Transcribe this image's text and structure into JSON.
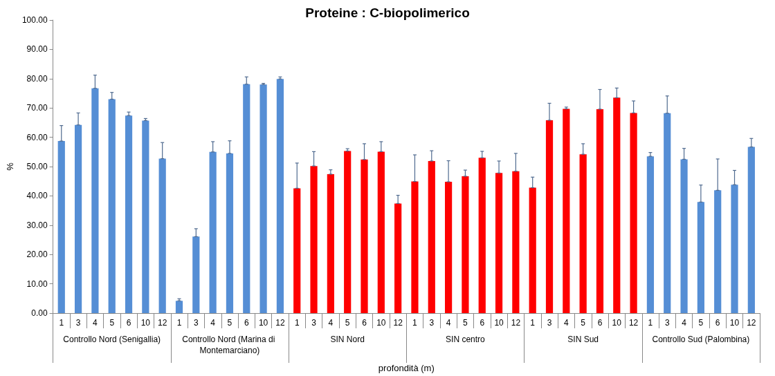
{
  "chart_data": {
    "type": "bar",
    "title": "Proteine : C-biopolimerico",
    "xlabel": "profondità (m)",
    "ylabel": "%",
    "categories": [
      "1",
      "3",
      "4",
      "5",
      "6",
      "10",
      "12",
      "1",
      "3",
      "4",
      "5",
      "6",
      "10",
      "12",
      "1",
      "3",
      "4",
      "5",
      "6",
      "10",
      "12",
      "1",
      "3",
      "4",
      "5",
      "6",
      "10",
      "12",
      "1",
      "3",
      "4",
      "5",
      "6",
      "10",
      "12",
      "1",
      "3",
      "4",
      "5",
      "6",
      "10",
      "12"
    ],
    "values": [
      58.7,
      64.2,
      76.7,
      73.0,
      67.4,
      65.7,
      52.7,
      4.2,
      26.1,
      55.0,
      54.5,
      78.1,
      78.0,
      79.9,
      42.6,
      50.2,
      47.4,
      55.3,
      52.4,
      55.1,
      37.4,
      44.9,
      51.9,
      44.8,
      46.7,
      53.0,
      47.8,
      48.4,
      42.8,
      65.8,
      69.7,
      54.2,
      69.6,
      73.5,
      68.3,
      53.5,
      68.2,
      52.5,
      37.9,
      41.9,
      43.8,
      56.7
    ],
    "errors": [
      [
        58.7,
        64.0
      ],
      [
        64.2,
        68.3
      ],
      [
        76.7,
        81.2
      ],
      [
        73.0,
        75.3
      ],
      [
        67.4,
        68.6
      ],
      [
        65.7,
        66.4
      ],
      [
        52.7,
        58.2
      ],
      [
        4.2,
        4.9
      ],
      [
        26.1,
        28.8
      ],
      [
        55.0,
        58.5
      ],
      [
        54.5,
        58.8
      ],
      [
        78.1,
        80.6
      ],
      [
        78.0,
        78.4
      ],
      [
        79.9,
        80.6
      ],
      [
        42.6,
        51.2
      ],
      [
        50.2,
        55.1
      ],
      [
        47.4,
        48.9
      ],
      [
        55.3,
        56.1
      ],
      [
        52.4,
        57.8
      ],
      [
        55.1,
        58.5
      ],
      [
        37.4,
        40.2
      ],
      [
        44.9,
        54.0
      ],
      [
        51.9,
        55.4
      ],
      [
        44.8,
        52.0
      ],
      [
        46.7,
        48.8
      ],
      [
        53.0,
        55.2
      ],
      [
        47.8,
        51.9
      ],
      [
        48.4,
        54.5
      ],
      [
        42.8,
        46.4
      ],
      [
        65.8,
        71.6
      ],
      [
        69.7,
        70.3
      ],
      [
        54.2,
        57.8
      ],
      [
        69.6,
        76.3
      ],
      [
        73.5,
        76.8
      ],
      [
        68.3,
        72.4
      ],
      [
        53.5,
        54.8
      ],
      [
        68.2,
        74.1
      ],
      [
        52.5,
        56.2
      ],
      [
        37.9,
        43.7
      ],
      [
        41.9,
        52.6
      ],
      [
        43.8,
        48.7
      ],
      [
        56.7,
        59.6
      ]
    ],
    "colors": [
      "#558ed5",
      "#558ed5",
      "#558ed5",
      "#558ed5",
      "#558ed5",
      "#558ed5",
      "#558ed5",
      "#558ed5",
      "#558ed5",
      "#558ed5",
      "#558ed5",
      "#558ed5",
      "#558ed5",
      "#558ed5",
      "#ff0000",
      "#ff0000",
      "#ff0000",
      "#ff0000",
      "#ff0000",
      "#ff0000",
      "#ff0000",
      "#ff0000",
      "#ff0000",
      "#ff0000",
      "#ff0000",
      "#ff0000",
      "#ff0000",
      "#ff0000",
      "#ff0000",
      "#ff0000",
      "#ff0000",
      "#ff0000",
      "#ff0000",
      "#ff0000",
      "#ff0000",
      "#558ed5",
      "#558ed5",
      "#558ed5",
      "#558ed5",
      "#558ed5",
      "#558ed5",
      "#558ed5"
    ],
    "annotations": [
      "Controllo Nord (Senigallia)",
      "Controllo Nord (Marina di Montemarciano)",
      "SIN Nord",
      "SIN centro",
      "SIN Sud",
      "Controllo Sud (Palombina)"
    ],
    "ylim": [
      0,
      100
    ],
    "yticks": [
      {
        "value": 0,
        "label": "0.00"
      },
      {
        "value": 10,
        "label": "10.00"
      },
      {
        "value": 20,
        "label": "20.00"
      },
      {
        "value": 30,
        "label": "30.00"
      },
      {
        "value": 40,
        "label": "40.00"
      },
      {
        "value": 50,
        "label": "50.00"
      },
      {
        "value": 60,
        "label": "60.00"
      },
      {
        "value": 70,
        "label": "70.00"
      },
      {
        "value": 80,
        "label": "80.00"
      },
      {
        "value": 90,
        "label": "90.00"
      },
      {
        "value": 100,
        "label": "100.00"
      }
    ],
    "grid": false
  }
}
